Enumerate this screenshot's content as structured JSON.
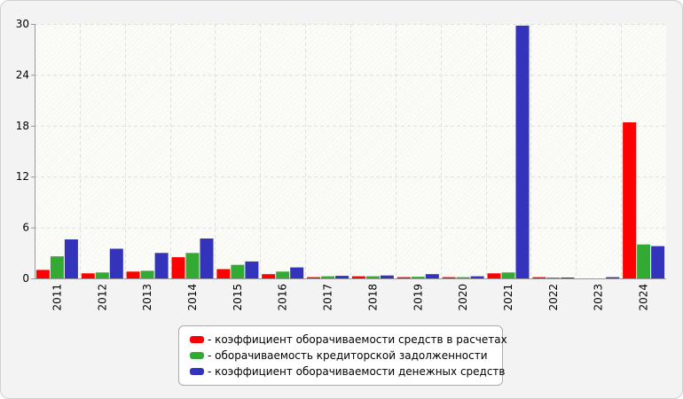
{
  "chart_data": {
    "type": "bar",
    "categories": [
      "2011",
      "2012",
      "2013",
      "2014",
      "2015",
      "2016",
      "2017",
      "2018",
      "2019",
      "2020",
      "2021",
      "2022",
      "2023",
      "2024"
    ],
    "series": [
      {
        "name": "- коэффициент оборачиваемости средств в расчетах",
        "color": "#ff0000",
        "values": [
          1.0,
          0.6,
          0.8,
          2.5,
          1.1,
          0.5,
          0.15,
          0.25,
          0.15,
          0.15,
          0.6,
          0.15,
          0.0,
          18.4
        ]
      },
      {
        "name": "- оборачиваемость кредиторской задолженности",
        "color": "#33aa33",
        "values": [
          2.6,
          0.7,
          0.9,
          3.0,
          1.6,
          0.8,
          0.25,
          0.25,
          0.2,
          0.15,
          0.7,
          0.1,
          0.0,
          4.0
        ]
      },
      {
        "name": "- коэффициент оборачиваемости денежных средств",
        "color": "#3333bb",
        "values": [
          4.6,
          3.5,
          3.0,
          4.7,
          2.0,
          1.3,
          0.3,
          0.35,
          0.5,
          0.25,
          29.8,
          0.1,
          0.15,
          3.8
        ]
      }
    ],
    "ylim": [
      0,
      30
    ],
    "yticks": [
      "0",
      "6",
      "12",
      "18",
      "24",
      "30"
    ],
    "grid": true,
    "legend_position": "bottom-center"
  }
}
